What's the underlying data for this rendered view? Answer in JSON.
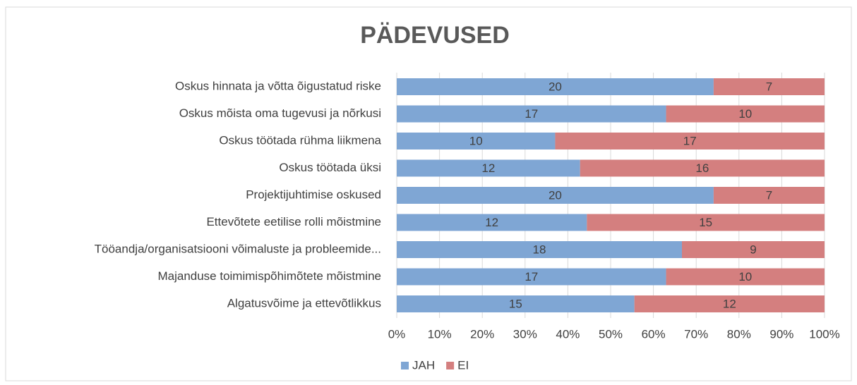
{
  "chart_data": {
    "type": "bar_stacked_100",
    "title": "PÄDEVUSED",
    "categories": [
      "Oskus hinnata ja võtta õigustatud riske",
      "Oskus mõista oma tugevusi ja nõrkusi",
      "Oskus töötada rühma liikmena",
      "Oskus töötada üksi",
      "Projektijuhtimise oskused",
      "Ettevõtete eetilise rolli mõistmine",
      "Tööandja/organisatsiooni võimaluste ja probleemide...",
      "Majanduse toimimispõhimõtete mõistmine",
      "Algatusvõime ja ettevõtlikkus"
    ],
    "series": [
      {
        "name": "JAH",
        "color": "#7fa6d4",
        "values": [
          20,
          17,
          10,
          12,
          20,
          12,
          18,
          17,
          15
        ]
      },
      {
        "name": "EI",
        "color": "#d47f7f",
        "values": [
          7,
          10,
          17,
          16,
          7,
          15,
          9,
          10,
          12
        ]
      }
    ],
    "xlim": [
      0,
      100
    ],
    "xticks": [
      {
        "value": 0,
        "label": "0%"
      },
      {
        "value": 10,
        "label": "10%"
      },
      {
        "value": 20,
        "label": "20%"
      },
      {
        "value": 30,
        "label": "30%"
      },
      {
        "value": 40,
        "label": "40%"
      },
      {
        "value": 50,
        "label": "50%"
      },
      {
        "value": 60,
        "label": "60%"
      },
      {
        "value": 70,
        "label": "70%"
      },
      {
        "value": 80,
        "label": "80%"
      },
      {
        "value": 90,
        "label": "90%"
      },
      {
        "value": 100,
        "label": "100%"
      }
    ],
    "grid": true,
    "legend": "bottom"
  }
}
